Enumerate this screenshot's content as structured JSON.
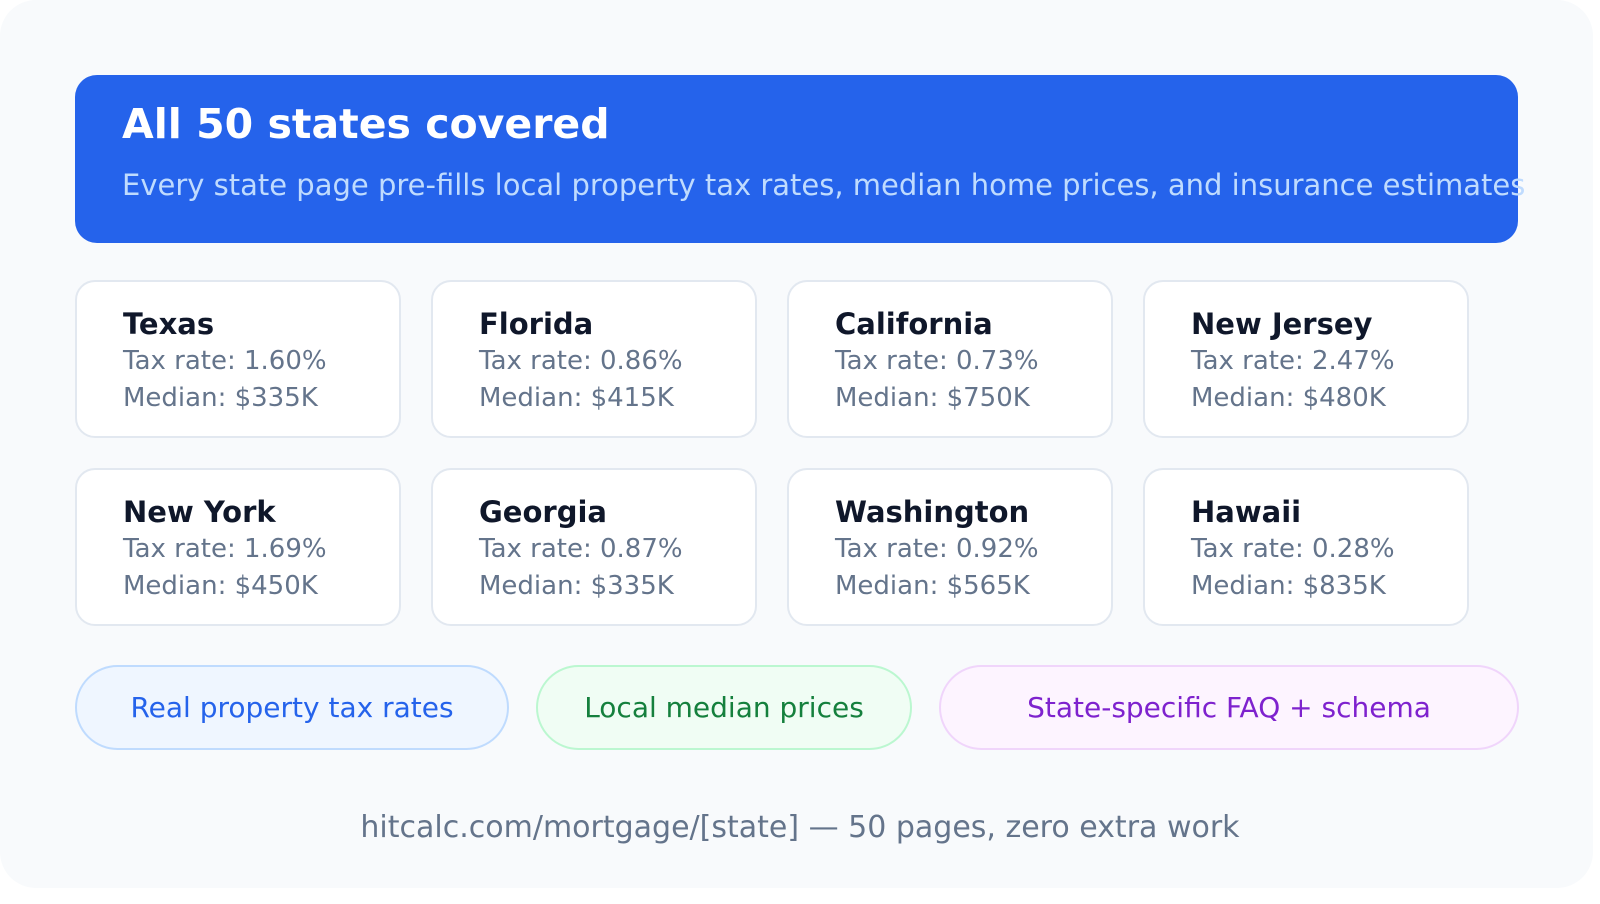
{
  "header": {
    "title": "All 50 states covered",
    "subtitle": "Every state page pre-fills local property tax rates, median home prices, and insurance estimates"
  },
  "states": [
    {
      "name": "Texas",
      "tax": "Tax rate: 1.60%",
      "median": "Median: $335K"
    },
    {
      "name": "Florida",
      "tax": "Tax rate: 0.86%",
      "median": "Median: $415K"
    },
    {
      "name": "California",
      "tax": "Tax rate: 0.73%",
      "median": "Median: $750K"
    },
    {
      "name": "New Jersey",
      "tax": "Tax rate: 2.47%",
      "median": "Median: $480K"
    },
    {
      "name": "New York",
      "tax": "Tax rate: 1.69%",
      "median": "Median: $450K"
    },
    {
      "name": "Georgia",
      "tax": "Tax rate: 0.87%",
      "median": "Median: $335K"
    },
    {
      "name": "Washington",
      "tax": "Tax rate: 0.92%",
      "median": "Median: $565K"
    },
    {
      "name": "Hawaii",
      "tax": "Tax rate: 0.28%",
      "median": "Median: $835K"
    }
  ],
  "pills": [
    "Real property tax rates",
    "Local median prices",
    "State-specific FAQ + schema"
  ],
  "footer": "hitcalc.com/mortgage/[state] — 50 pages, zero extra work"
}
